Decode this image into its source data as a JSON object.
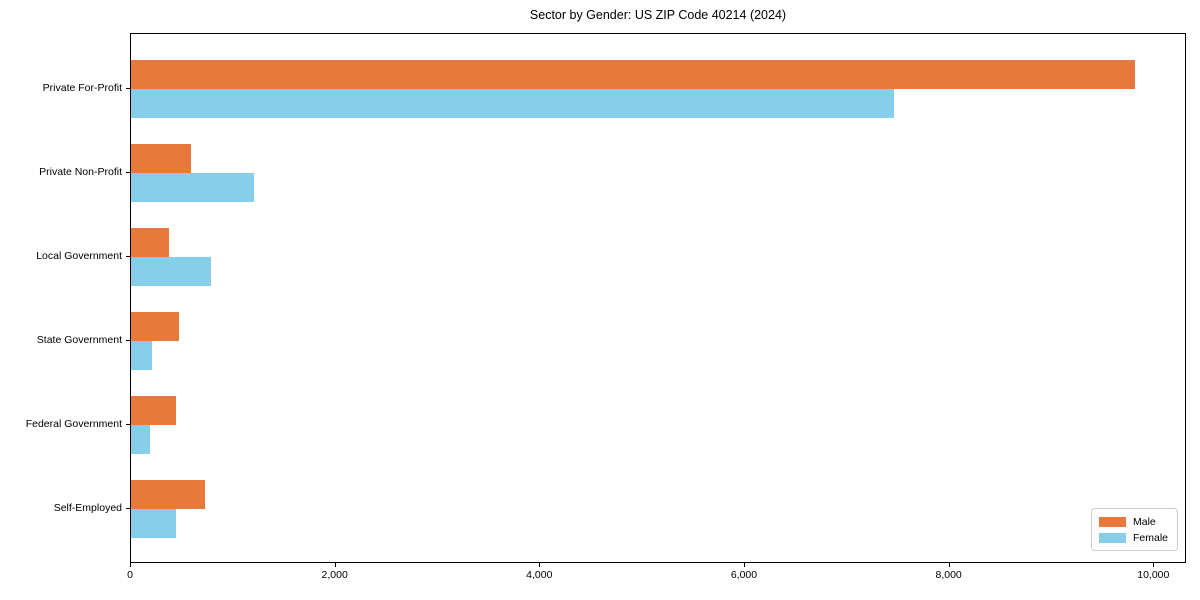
{
  "title": "Sector by Gender: US ZIP Code 40214 (2024)",
  "chart_data": {
    "type": "bar",
    "orientation": "horizontal",
    "title": "Sector by Gender: US ZIP Code 40214 (2024)",
    "xlabel": "",
    "ylabel": "",
    "categories": [
      "Private For-Profit",
      "Private Non-Profit",
      "Local Government",
      "State Government",
      "Federal Government",
      "Self-Employed"
    ],
    "series": [
      {
        "name": "Male",
        "color": "#e8793d",
        "values": [
          9810,
          590,
          370,
          465,
          440,
          725
        ]
      },
      {
        "name": "Female",
        "color": "#87ceeb",
        "values": [
          7455,
          1200,
          780,
          210,
          190,
          440
        ]
      }
    ],
    "xlim": [
      0,
      10300
    ],
    "x_ticks": [
      0,
      2000,
      4000,
      6000,
      8000,
      10000
    ],
    "x_tick_labels": [
      "0",
      "2,000",
      "4,000",
      "6,000",
      "8,000",
      "10,000"
    ],
    "grid": false,
    "legend_position": "lower right"
  },
  "legend": {
    "items": [
      {
        "label": "Male",
        "color": "#e8793d"
      },
      {
        "label": "Female",
        "color": "#87ceeb"
      }
    ]
  }
}
